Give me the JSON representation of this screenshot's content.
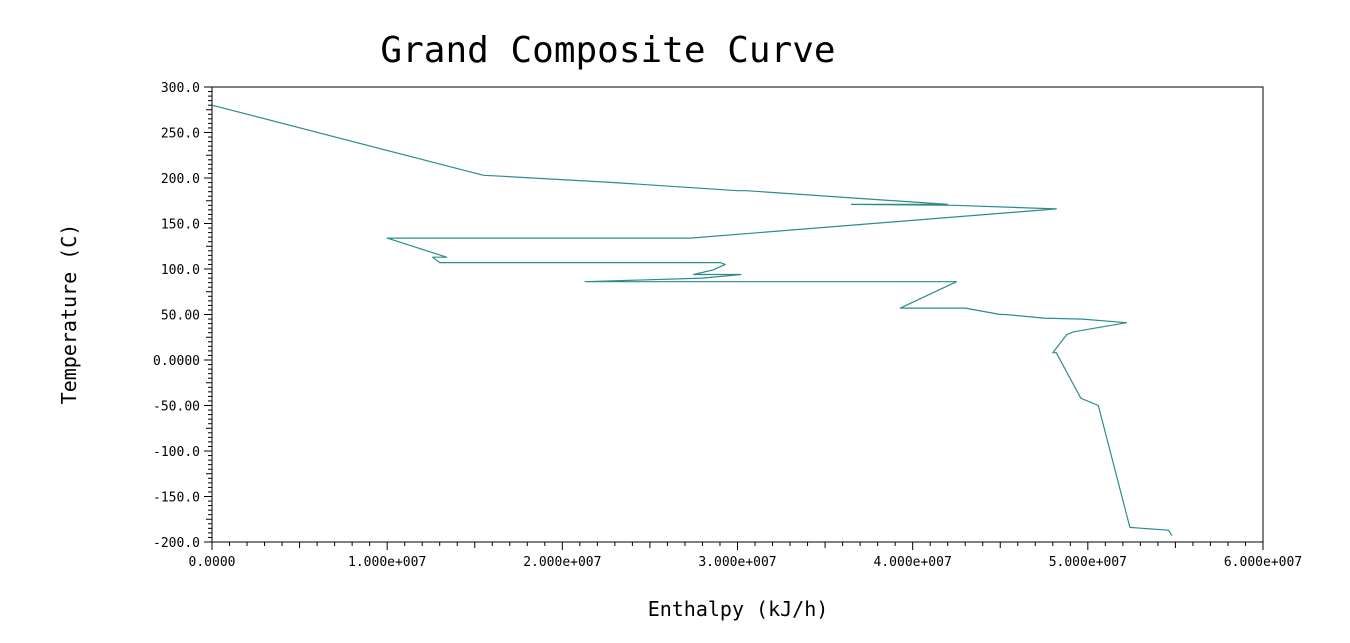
{
  "chart_data": {
    "type": "line",
    "title": "Grand Composite Curve",
    "xlabel": "Enthalpy (kJ/h)",
    "ylabel": "Temperature (C)",
    "xlim": [
      0,
      60000000
    ],
    "ylim": [
      -200,
      300
    ],
    "x_tick_labels": [
      "0.0000",
      "1.000e+007",
      "2.000e+007",
      "3.000e+007",
      "4.000e+007",
      "5.000e+007",
      "6.000e+007"
    ],
    "x_tick_values": [
      0,
      10000000,
      20000000,
      30000000,
      40000000,
      50000000,
      60000000
    ],
    "y_tick_labels": [
      "300.0",
      "250.0",
      "200.0",
      "150.0",
      "100.0",
      "50.00",
      "0.0000",
      "-50.00",
      "-100.0",
      "-150.0",
      "-200.0"
    ],
    "y_tick_values": [
      300,
      250,
      200,
      150,
      100,
      50,
      0,
      -50,
      -100,
      -150,
      -200
    ],
    "grid": false,
    "line_color": "#2e8b8b",
    "series": [
      {
        "x": [
          0,
          15500000,
          16500000,
          23000000,
          30000000,
          30500000,
          42000000,
          36500000,
          42400000,
          48200000,
          27300000,
          27200000,
          10000000,
          13400000,
          12600000,
          13000000,
          29000000,
          29300000,
          28600000,
          27500000,
          30200000,
          28000000,
          21300000,
          28100000,
          42500000,
          39300000,
          43000000,
          45000000,
          45300000,
          47500000,
          49700000,
          52200000,
          49200000,
          48800000,
          48000000,
          48200000,
          49600000,
          50600000,
          52400000,
          54600000,
          54800000
        ],
        "y": [
          280,
          203,
          202,
          195,
          186,
          186,
          171,
          171,
          170,
          166,
          134,
          134,
          134,
          113,
          113,
          107,
          107,
          105,
          99,
          94,
          94,
          90,
          86,
          86,
          86,
          57,
          57,
          50,
          50,
          46,
          45,
          41,
          31,
          28,
          8,
          8,
          -42,
          -50,
          -184,
          -187,
          -193
        ]
      }
    ]
  }
}
